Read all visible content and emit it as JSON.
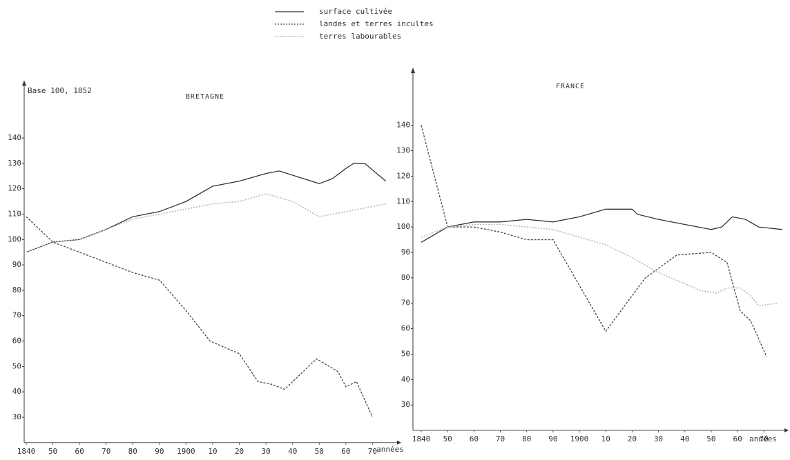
{
  "chart_data": [
    {
      "type": "line",
      "title": "BRETAGNE",
      "ylabel": "Base 100, 1852",
      "xlabel": "années",
      "xlim": [
        1840,
        1980
      ],
      "ylim": [
        20,
        160
      ],
      "yticks": [
        30,
        40,
        50,
        60,
        70,
        80,
        90,
        100,
        110,
        120,
        130,
        140
      ],
      "xticks": [
        1840,
        {
          "value": 1850,
          "label": "50"
        },
        {
          "value": 1860,
          "label": "60"
        },
        {
          "value": 1870,
          "label": "70"
        },
        {
          "value": 1880,
          "label": "80"
        },
        {
          "value": 1890,
          "label": "90"
        },
        1900,
        {
          "value": 1910,
          "label": "10"
        },
        {
          "value": 1920,
          "label": "20"
        },
        {
          "value": 1930,
          "label": "30"
        },
        {
          "value": 1940,
          "label": "40"
        },
        {
          "value": 1950,
          "label": "50"
        },
        {
          "value": 1960,
          "label": "60"
        },
        {
          "value": 1970,
          "label": "70"
        }
      ],
      "series": [
        {
          "name": "surface cultivée",
          "color": "#333333",
          "style": "solid",
          "x": [
            1840,
            1850,
            1860,
            1870,
            1880,
            1890,
            1900,
            1910,
            1920,
            1930,
            1935,
            1950,
            1955,
            1960,
            1963,
            1967,
            1975
          ],
          "values": [
            95,
            99,
            100,
            104,
            109,
            111,
            115,
            121,
            123,
            126,
            127,
            122,
            124,
            128,
            130,
            130,
            123
          ]
        },
        {
          "name": "landes et terres incultes",
          "color": "#444444",
          "style": "dashed",
          "x": [
            1840,
            1850,
            1860,
            1870,
            1880,
            1890,
            1900,
            1909,
            1920,
            1927,
            1932,
            1937,
            1949,
            1957,
            1960,
            1964,
            1970
          ],
          "values": [
            109,
            99,
            95,
            91,
            87,
            84,
            72,
            60,
            55,
            44,
            43,
            41,
            53,
            48,
            42,
            44,
            30
          ]
        },
        {
          "name": "terres labourables",
          "color": "#b8b8b8",
          "style": "dotted",
          "x": [
            1840,
            1850,
            1860,
            1870,
            1880,
            1890,
            1900,
            1910,
            1920,
            1930,
            1940,
            1950,
            1960,
            1975
          ],
          "values": [
            95,
            99,
            100,
            104,
            108,
            110,
            112,
            114,
            115,
            118,
            115,
            109,
            111,
            114
          ]
        }
      ]
    },
    {
      "type": "line",
      "title": "FRANCE",
      "xlabel": "années",
      "xlim": [
        1840,
        1977
      ],
      "ylim": [
        20,
        160
      ],
      "yticks": [
        30,
        40,
        50,
        60,
        70,
        80,
        90,
        100,
        110,
        120,
        130,
        140
      ],
      "xticks": [
        1840,
        {
          "value": 1850,
          "label": "50"
        },
        {
          "value": 1860,
          "label": "60"
        },
        {
          "value": 1870,
          "label": "70"
        },
        {
          "value": 1880,
          "label": "80"
        },
        {
          "value": 1890,
          "label": "90"
        },
        1900,
        {
          "value": 1910,
          "label": "10"
        },
        {
          "value": 1920,
          "label": "20"
        },
        {
          "value": 1930,
          "label": "30"
        },
        {
          "value": 1940,
          "label": "40"
        },
        {
          "value": 1950,
          "label": "50"
        },
        {
          "value": 1960,
          "label": "60"
        },
        {
          "value": 1970,
          "label": "70"
        }
      ],
      "series": [
        {
          "color": "#333333",
          "style": "solid",
          "x": [
            1840,
            1850,
            1860,
            1870,
            1880,
            1890,
            1900,
            1910,
            1920,
            1922,
            1930,
            1940,
            1950,
            1954,
            1958,
            1963,
            1968,
            1977
          ],
          "values": [
            94,
            100,
            102,
            102,
            103,
            102,
            104,
            107,
            107,
            105,
            103,
            101,
            99,
            100,
            104,
            103,
            100,
            99
          ]
        },
        {
          "color": "#444444",
          "style": "dashed",
          "x": [
            1840,
            1850,
            1860,
            1870,
            1880,
            1890,
            1910,
            1925,
            1937,
            1950,
            1956,
            1961,
            1965,
            1971
          ],
          "values": [
            140,
            100,
            100,
            98,
            95,
            95,
            59,
            80,
            89,
            90,
            86,
            67,
            63,
            49
          ]
        },
        {
          "color": "#b8b8b8",
          "style": "dotted",
          "x": [
            1840,
            1850,
            1860,
            1870,
            1880,
            1890,
            1910,
            1920,
            1930,
            1937,
            1946,
            1952,
            1956,
            1961,
            1965,
            1968,
            1975
          ],
          "values": [
            96,
            100,
            101,
            101,
            100,
            99,
            93,
            88,
            82,
            79,
            75,
            74,
            76,
            76,
            73,
            69,
            70
          ]
        }
      ]
    }
  ]
}
